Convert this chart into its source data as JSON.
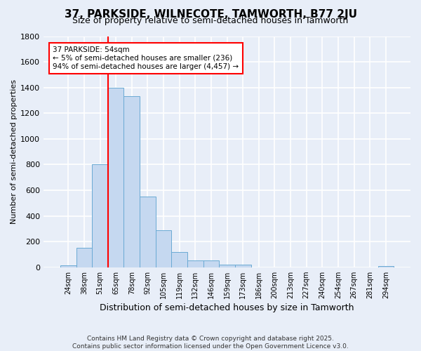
{
  "title": "37, PARKSIDE, WILNECOTE, TAMWORTH, B77 2JU",
  "subtitle": "Size of property relative to semi-detached houses in Tamworth",
  "xlabel": "Distribution of semi-detached houses by size in Tamworth",
  "ylabel": "Number of semi-detached properties",
  "bar_color": "#c5d8f0",
  "bar_edge_color": "#6aaad4",
  "background_color": "#e8eef8",
  "grid_color": "#ffffff",
  "categories": [
    "24sqm",
    "38sqm",
    "51sqm",
    "65sqm",
    "78sqm",
    "92sqm",
    "105sqm",
    "119sqm",
    "132sqm",
    "146sqm",
    "159sqm",
    "173sqm",
    "186sqm",
    "200sqm",
    "213sqm",
    "227sqm",
    "240sqm",
    "254sqm",
    "267sqm",
    "281sqm",
    "294sqm"
  ],
  "values": [
    15,
    150,
    800,
    1400,
    1330,
    550,
    290,
    120,
    55,
    55,
    20,
    20,
    0,
    0,
    0,
    0,
    0,
    0,
    0,
    0,
    10
  ],
  "ylim": [
    0,
    1800
  ],
  "yticks": [
    0,
    200,
    400,
    600,
    800,
    1000,
    1200,
    1400,
    1600,
    1800
  ],
  "red_line_x": 2.5,
  "annotation_title": "37 PARKSIDE: 54sqm",
  "annotation_line1": "← 5% of semi-detached houses are smaller (236)",
  "annotation_line2": "94% of semi-detached houses are larger (4,457) →",
  "footnote1": "Contains HM Land Registry data © Crown copyright and database right 2025.",
  "footnote2": "Contains public sector information licensed under the Open Government Licence v3.0."
}
